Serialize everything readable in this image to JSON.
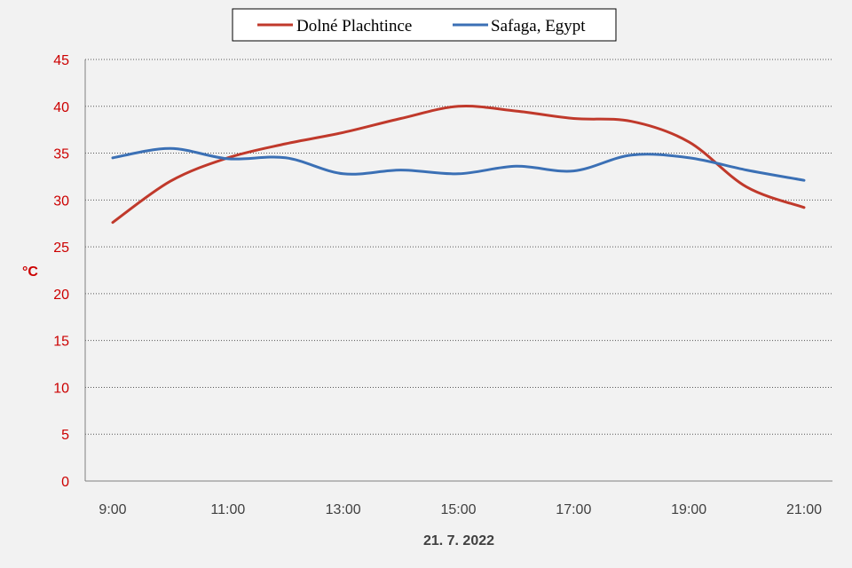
{
  "chart_data": {
    "type": "line",
    "title": "",
    "xlabel": "21. 7. 2022",
    "ylabel": "°C",
    "ylim": [
      0,
      45
    ],
    "yticks": [
      0,
      5,
      10,
      15,
      20,
      25,
      30,
      35,
      40,
      45
    ],
    "grid": true,
    "legend_position": "top-center",
    "x": [
      "9:00",
      "10:00",
      "11:00",
      "12:00",
      "13:00",
      "14:00",
      "15:00",
      "16:00",
      "17:00",
      "18:00",
      "19:00",
      "20:00",
      "21:00"
    ],
    "xticks": [
      "9:00",
      "11:00",
      "13:00",
      "15:00",
      "17:00",
      "19:00",
      "21:00"
    ],
    "series": [
      {
        "name": "Dolné Plachtince",
        "color": "#c0392b",
        "values": [
          27.6,
          32.0,
          34.5,
          36.0,
          37.2,
          38.7,
          40.0,
          39.5,
          38.7,
          38.4,
          36.2,
          31.4,
          29.2
        ]
      },
      {
        "name": "Safaga, Egypt",
        "color": "#3b70b5",
        "values": [
          34.5,
          35.5,
          34.4,
          34.5,
          32.8,
          33.2,
          32.8,
          33.6,
          33.1,
          34.8,
          34.5,
          33.2,
          32.1
        ]
      }
    ]
  }
}
